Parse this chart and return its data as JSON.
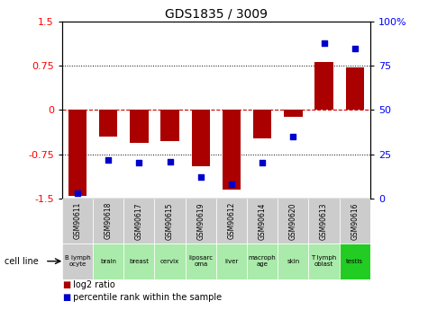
{
  "title": "GDS1835 / 3009",
  "samples": [
    "GSM90611",
    "GSM90618",
    "GSM90617",
    "GSM90615",
    "GSM90619",
    "GSM90612",
    "GSM90614",
    "GSM90620",
    "GSM90613",
    "GSM90616"
  ],
  "cell_lines": [
    "B lymph\nocyte",
    "brain",
    "breast",
    "cervix",
    "liposarc\noma",
    "liver",
    "macroph\nage",
    "skin",
    "T lymph\noblast",
    "testis"
  ],
  "cell_bg": [
    "#cccccc",
    "#aaeaaa",
    "#aaeaaa",
    "#aaeaaa",
    "#aaeaaa",
    "#aaeaaa",
    "#aaeaaa",
    "#aaeaaa",
    "#aaeaaa",
    "#22cc22"
  ],
  "log2_ratio": [
    -1.45,
    -0.45,
    -0.55,
    -0.52,
    -0.95,
    -1.35,
    -0.48,
    -0.12,
    0.82,
    0.72
  ],
  "percentile_rank": [
    3,
    22,
    20,
    21,
    12,
    8,
    20,
    35,
    88,
    85
  ],
  "ylim_left": [
    -1.5,
    1.5
  ],
  "ylim_right": [
    0,
    100
  ],
  "bar_color": "#aa0000",
  "dot_color": "#0000cc",
  "zero_line_color": "#cc0000",
  "grid_color": "#333333",
  "sample_bg": "#cccccc",
  "yticks_left": [
    -1.5,
    -0.75,
    0,
    0.75,
    1.5
  ],
  "ytick_labels_left": [
    "-1.5",
    "-0.75",
    "0",
    "0.75",
    "1.5"
  ],
  "yticks_right": [
    0,
    25,
    50,
    75,
    100
  ],
  "ytick_labels_right": [
    "0",
    "25",
    "50",
    "75",
    "100%"
  ]
}
